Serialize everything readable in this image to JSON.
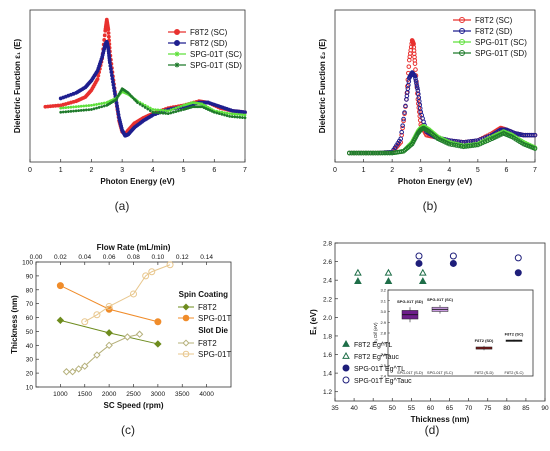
{
  "captions": [
    "(a)",
    "(b)",
    "(c)",
    "(d)"
  ],
  "colors": {
    "f8t2_sc": "#e8312f",
    "f8t2_sd": "#1f1f8f",
    "spg_sc": "#5fe03c",
    "spg_sd": "#1e7a2a",
    "c_f8t2": "#6e8c1e",
    "c_spg": "#f08c2a",
    "c_f8t2_slot": "#b5b07a",
    "c_spg_slot": "#e8c78e",
    "d_f8t2": "#1e6e48",
    "d_spg": "#1e1e7a",
    "d_box_sd": "#6e1e8a",
    "d_box_sc": "#c99be0",
    "d_box_f8sd": "#c81e1e",
    "d_box_f8sc": "#3a3a3a"
  },
  "chart_data": [
    {
      "id": "a",
      "type": "line",
      "xlabel": "Photon Energy (eV)",
      "ylabel": "Dielectric Function ε₁ (E)",
      "xlim": [
        0,
        7
      ],
      "ylim": [
        -1,
        10
      ],
      "xticks": [
        "0",
        "1",
        "2",
        "3",
        "4",
        "5",
        "6",
        "7"
      ],
      "legend": [
        "F8T2 (SC)",
        "F8T2 (SD)",
        "SPG-01T (SC)",
        "SPG-01T (SD)"
      ],
      "legend_position": "top-right",
      "series": [
        {
          "name": "F8T2 (SC)",
          "color": "f8t2_sc",
          "marker": "dot",
          "x": [
            0.5,
            1,
            1.5,
            1.8,
            2,
            2.2,
            2.35,
            2.45,
            2.5,
            2.55,
            2.6,
            2.7,
            2.8,
            2.9,
            3.0,
            3.1,
            3.2,
            3.4,
            3.7,
            4,
            4.5,
            5,
            5.5,
            5.8,
            6.2,
            6.6,
            7
          ],
          "y": [
            3.0,
            3.1,
            3.4,
            3.7,
            4.2,
            5.0,
            6.5,
            8.5,
            9.3,
            8.6,
            7.0,
            5.2,
            3.5,
            2.0,
            1.2,
            1.0,
            1.3,
            1.8,
            2.2,
            2.5,
            2.9,
            3.1,
            3.4,
            3.3,
            2.9,
            2.7,
            2.6
          ]
        },
        {
          "name": "F8T2 (SD)",
          "color": "f8t2_sd",
          "marker": "dot",
          "x": [
            1,
            1.5,
            1.8,
            2,
            2.2,
            2.35,
            2.45,
            2.5,
            2.55,
            2.6,
            2.7,
            2.8,
            2.9,
            3.0,
            3.1,
            3.2,
            3.4,
            3.7,
            4,
            4.5,
            5,
            5.5,
            5.8,
            6.2,
            6.6,
            7
          ],
          "y": [
            3.6,
            4.0,
            4.4,
            4.9,
            5.6,
            6.6,
            7.5,
            7.7,
            7.2,
            6.2,
            4.8,
            3.5,
            2.2,
            1.3,
            0.9,
            1.0,
            1.5,
            2.0,
            2.4,
            2.8,
            3.0,
            3.3,
            3.3,
            3.0,
            2.7,
            2.6
          ]
        },
        {
          "name": "SPG-01T (SC)",
          "color": "spg_sc",
          "marker": "star",
          "x": [
            1,
            1.5,
            2,
            2.5,
            2.8,
            3.0,
            3.2,
            3.5,
            4,
            4.5,
            5,
            5.3,
            5.6,
            6,
            6.5,
            7
          ],
          "y": [
            2.9,
            3.0,
            3.1,
            3.3,
            3.6,
            4.1,
            3.9,
            3.4,
            2.8,
            2.7,
            3.1,
            3.3,
            3.2,
            2.7,
            2.5,
            2.4
          ]
        },
        {
          "name": "SPG-01T (SD)",
          "color": "spg_sd",
          "marker": "star",
          "x": [
            1,
            1.5,
            2,
            2.5,
            2.8,
            3.0,
            3.2,
            3.5,
            4,
            4.5,
            5,
            5.3,
            5.6,
            6,
            6.5,
            7
          ],
          "y": [
            2.6,
            2.7,
            2.8,
            3.1,
            3.5,
            4.3,
            4.0,
            3.3,
            2.6,
            2.5,
            2.8,
            3.0,
            3.0,
            2.6,
            2.3,
            2.2
          ]
        }
      ]
    },
    {
      "id": "b",
      "type": "line",
      "xlabel": "Photon Energy (eV)",
      "ylabel": "Dielectric Function ε₂ (E)",
      "xlim": [
        0,
        7
      ],
      "ylim": [
        -0.5,
        8
      ],
      "xticks": [
        "0",
        "1",
        "2",
        "3",
        "4",
        "5",
        "6",
        "7"
      ],
      "legend": [
        "F8T2 (SC)",
        "F8T2 (SD)",
        "SPG-01T (SC)",
        "SPG-01T (SD)"
      ],
      "legend_position": "top-right",
      "series": [
        {
          "name": "F8T2 (SC)",
          "color": "f8t2_sc",
          "marker": "circle",
          "x": [
            0.5,
            1,
            1.5,
            2,
            2.3,
            2.5,
            2.6,
            2.7,
            2.75,
            2.8,
            2.9,
            3.0,
            3.2,
            3.5,
            4,
            4.5,
            5,
            5.5,
            5.8,
            6,
            6.3,
            6.6,
            7
          ],
          "y": [
            0,
            0,
            0,
            0.05,
            0.6,
            3.0,
            5.2,
            6.3,
            6.1,
            5.0,
            3.0,
            1.6,
            1.0,
            0.9,
            0.7,
            0.6,
            0.7,
            1.1,
            1.4,
            1.3,
            1.1,
            1.0,
            1.0
          ]
        },
        {
          "name": "F8T2 (SD)",
          "color": "f8t2_sd",
          "marker": "circle",
          "x": [
            0.5,
            1,
            1.5,
            2,
            2.3,
            2.5,
            2.6,
            2.7,
            2.8,
            2.9,
            3.0,
            3.2,
            3.5,
            4,
            4.5,
            5,
            5.5,
            5.8,
            6,
            6.3,
            6.6,
            7
          ],
          "y": [
            0,
            0,
            0,
            0.05,
            0.8,
            3.0,
            4.2,
            4.5,
            4.3,
            3.5,
            2.3,
            1.2,
            0.9,
            0.7,
            0.6,
            0.7,
            1.0,
            1.3,
            1.3,
            1.1,
            1.0,
            1.0
          ]
        },
        {
          "name": "SPG-01T (SC)",
          "color": "spg_sc",
          "marker": "circle",
          "x": [
            0.5,
            1,
            1.5,
            2,
            2.4,
            2.7,
            2.9,
            3.0,
            3.1,
            3.3,
            3.6,
            4,
            4.5,
            5,
            5.5,
            5.9,
            6.2,
            6.6,
            7
          ],
          "y": [
            0,
            0,
            0,
            0,
            0.1,
            0.6,
            1.2,
            1.4,
            1.5,
            1.3,
            0.9,
            0.6,
            0.4,
            0.5,
            0.9,
            1.2,
            1.0,
            0.6,
            0.3
          ]
        },
        {
          "name": "SPG-01T (SD)",
          "color": "spg_sd",
          "marker": "circle",
          "x": [
            0.5,
            1,
            1.5,
            2,
            2.4,
            2.7,
            2.9,
            3.0,
            3.1,
            3.3,
            3.6,
            4,
            4.5,
            5,
            5.5,
            5.9,
            6.2,
            6.6,
            7
          ],
          "y": [
            0,
            0,
            0,
            0,
            0.1,
            0.5,
            1.1,
            1.3,
            1.4,
            1.2,
            0.8,
            0.5,
            0.35,
            0.45,
            0.8,
            1.1,
            0.9,
            0.5,
            0.25
          ]
        }
      ]
    },
    {
      "id": "c",
      "type": "line",
      "xlabel": "SC Speed (rpm)",
      "x2label": "Flow Rate (mL/min)",
      "ylabel": "Thickness (nm)",
      "xlim": [
        500,
        4500
      ],
      "x2lim": [
        0,
        0.16
      ],
      "ylim": [
        10,
        100
      ],
      "xticks": [
        "1000",
        "1500",
        "2000",
        "2500",
        "3000",
        "3500",
        "4000"
      ],
      "x2ticks": [
        "0.00",
        "0.02",
        "0.04",
        "0.06",
        "0.08",
        "0.10",
        "0.12",
        "0.14"
      ],
      "yticks": [
        "10",
        "20",
        "30",
        "40",
        "50",
        "60",
        "70",
        "80",
        "90",
        "100"
      ],
      "legend_groups": [
        "Spin Coating",
        "Slot Die"
      ],
      "legend": [
        "F8T2",
        "SPG-01T",
        "F8T2",
        "SPG-01T"
      ],
      "legend_position": "right",
      "series": [
        {
          "name": "F8T2",
          "group": "Spin Coating",
          "color": "c_f8t2",
          "marker": "diamond",
          "filled": true,
          "axis": "x",
          "x": [
            1000,
            2000,
            3000
          ],
          "y": [
            58,
            49,
            41
          ]
        },
        {
          "name": "SPG-01T",
          "group": "Spin Coating",
          "color": "c_spg",
          "marker": "circle",
          "filled": true,
          "axis": "x",
          "x": [
            1000,
            2000,
            3000
          ],
          "y": [
            83,
            66,
            57
          ]
        },
        {
          "name": "F8T2",
          "group": "Slot Die",
          "color": "c_f8t2_slot",
          "marker": "diamond",
          "filled": false,
          "axis": "x2",
          "x": [
            0.025,
            0.03,
            0.035,
            0.04,
            0.05,
            0.06,
            0.075,
            0.085
          ],
          "y": [
            21,
            21,
            23,
            25,
            33,
            40,
            46,
            48
          ]
        },
        {
          "name": "SPG-01T",
          "group": "Slot Die",
          "color": "c_spg_slot",
          "marker": "circle",
          "filled": false,
          "axis": "x2",
          "x": [
            0.04,
            0.05,
            0.06,
            0.08,
            0.09,
            0.095,
            0.11
          ],
          "y": [
            57,
            62,
            68,
            77,
            90,
            93,
            98
          ]
        }
      ]
    },
    {
      "id": "d",
      "type": "scatter",
      "xlabel": "Thickness (nm)",
      "ylabel": "Eₓ (eV)",
      "xlim": [
        35,
        90
      ],
      "ylim": [
        1.1,
        2.8
      ],
      "xticks": [
        "35",
        "40",
        "45",
        "50",
        "55",
        "60",
        "65",
        "70",
        "75",
        "80",
        "85",
        "90"
      ],
      "yticks": [
        "1.2",
        "1.4",
        "1.6",
        "1.8",
        "2.0",
        "2.2",
        "2.4",
        "2.6",
        "2.8"
      ],
      "legend": [
        "F8T2 Eg^TL",
        "F8T2 Eg^Tauc",
        "SPG-01T Eg^TL",
        "SPG-01T Eg^Tauc"
      ],
      "legend_position": "bottom-left",
      "series": [
        {
          "name": "F8T2 Eg^TL",
          "color": "d_f8t2",
          "marker": "triangle",
          "filled": true,
          "x": [
            41,
            49,
            58
          ],
          "y": [
            2.39,
            2.39,
            2.39
          ]
        },
        {
          "name": "F8T2 Eg^Tauc",
          "color": "d_f8t2",
          "marker": "triangle",
          "filled": false,
          "x": [
            41,
            49,
            58
          ],
          "y": [
            2.48,
            2.48,
            2.48
          ]
        },
        {
          "name": "SPG-01T Eg^TL",
          "color": "d_spg",
          "marker": "circle",
          "filled": true,
          "x": [
            57,
            66,
            83
          ],
          "y": [
            2.58,
            2.58,
            2.48
          ]
        },
        {
          "name": "SPG-01T Eg^Tauc",
          "color": "d_spg",
          "marker": "circle",
          "filled": false,
          "x": [
            57,
            66,
            83
          ],
          "y": [
            2.66,
            2.66,
            2.64
          ]
        }
      ],
      "inset": {
        "ylabel": "Eₓ Dif (eV)",
        "yticks": [
          "2.4",
          "2.5",
          "2.6",
          "2.7",
          "2.8",
          "2.9",
          "3.0",
          "3.1",
          "3.2"
        ],
        "ylim": [
          2.4,
          3.2
        ],
        "categories": [
          "SPG-01T (S-D)",
          "SPG-01T (S-C)",
          "F8T2 (S-D)",
          "F8T2 (S-C)"
        ],
        "box_labels": [
          "SPG-01T (SD)",
          "SPG-01T (SC)",
          "F8T2 (SD)",
          "F8T2 (SC)"
        ],
        "boxes": [
          {
            "color": "d_box_sd",
            "min": 2.9,
            "q1": 2.93,
            "median": 2.97,
            "q3": 3.01,
            "max": 3.04
          },
          {
            "color": "d_box_sc",
            "min": 2.98,
            "q1": 3.0,
            "median": 3.02,
            "q3": 3.04,
            "max": 3.06
          },
          {
            "color": "d_box_f8sd",
            "min": 2.64,
            "q1": 2.65,
            "median": 2.66,
            "q3": 2.67,
            "max": 2.68
          },
          {
            "color": "d_box_f8sc",
            "min": 2.72,
            "q1": 2.725,
            "median": 2.73,
            "q3": 2.735,
            "max": 2.74
          }
        ]
      }
    }
  ]
}
